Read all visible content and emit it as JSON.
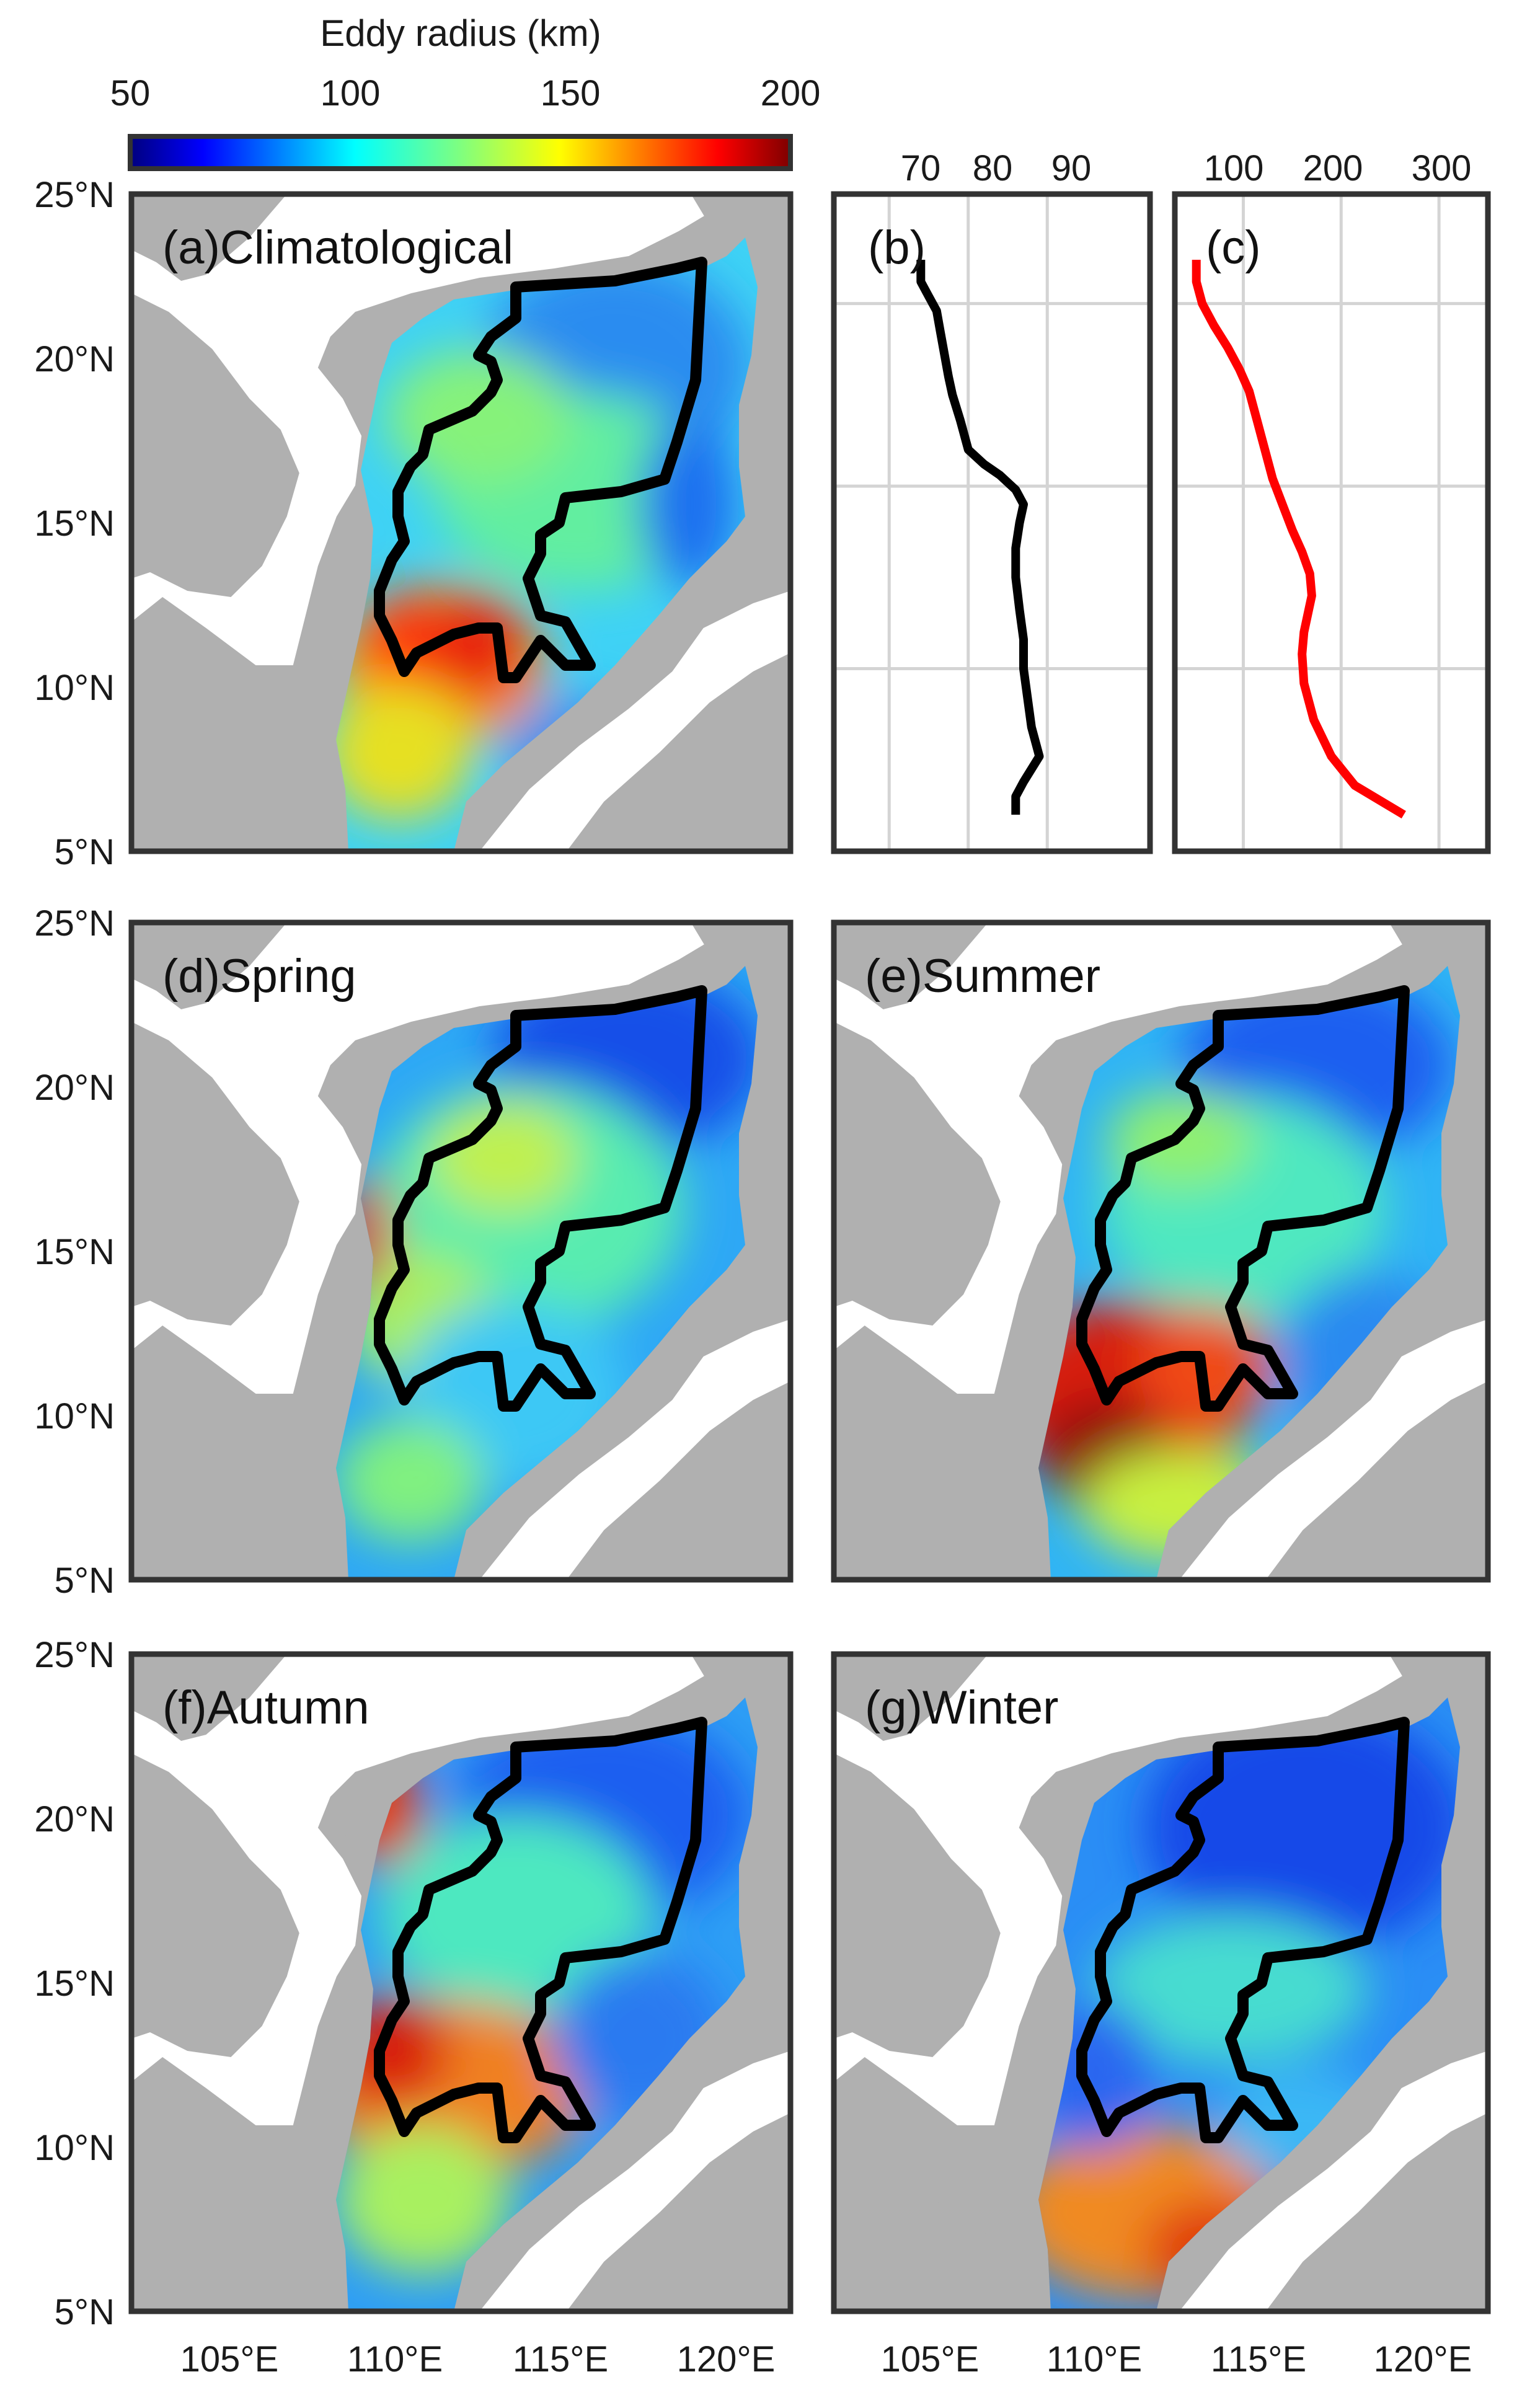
{
  "colorbar": {
    "title": "Eddy radius (km)",
    "ticks": [
      "50",
      "100",
      "150",
      "200"
    ],
    "range": [
      50,
      200
    ],
    "colormap": "jet"
  },
  "map_axes": {
    "lat_ticks": [
      "25°N",
      "20°N",
      "15°N",
      "10°N",
      "5°N"
    ],
    "lon_ticks": [
      "105°E",
      "110°E",
      "115°E",
      "120°E"
    ]
  },
  "panels": [
    {
      "id": "a",
      "title": "(a)Climatological"
    },
    {
      "id": "d",
      "title": "(d)Spring"
    },
    {
      "id": "e",
      "title": "(e)Summer"
    },
    {
      "id": "f",
      "title": "(f)Autumn"
    },
    {
      "id": "g",
      "title": "(g)Winter"
    }
  ],
  "profile_b": {
    "title": "(b)",
    "x_ticks": [
      "70",
      "80",
      "90"
    ]
  },
  "profile_c": {
    "title": "(c)",
    "x_ticks": [
      "100",
      "200",
      "300"
    ]
  },
  "colors": {
    "land": "#b0b0b0",
    "ocean_mask": "#ffffff",
    "contour": "#000000",
    "profile_b": "#000000",
    "profile_c": "#ff0000"
  },
  "chart_data": [
    {
      "type": "line",
      "panel": "b",
      "title": "(b)",
      "xlabel": "",
      "ylabel": "",
      "xlim": [
        63,
        103
      ],
      "ylim": [
        5,
        23
      ],
      "grid": true,
      "x": [
        74,
        74,
        75,
        76,
        76.5,
        77,
        77.5,
        78,
        79,
        80,
        82,
        84,
        86,
        87,
        86.5,
        86,
        86,
        86.5,
        87,
        87,
        87.5,
        88,
        89,
        87,
        86,
        86
      ],
      "y": [
        21.2,
        20.6,
        20.2,
        19.8,
        19.2,
        18.6,
        18.0,
        17.5,
        16.8,
        16.0,
        15.6,
        15.3,
        14.9,
        14.5,
        14.0,
        13.3,
        12.5,
        11.6,
        10.8,
        10.0,
        9.2,
        8.4,
        7.6,
        6.9,
        6.5,
        6.0
      ],
      "series": [
        {
          "values": [
            74,
            74,
            75,
            76,
            76.5,
            77,
            77.5,
            78,
            79,
            80,
            82,
            84,
            86,
            87,
            86.5,
            86,
            86,
            86.5,
            87,
            87,
            87.5,
            88,
            89,
            87,
            86,
            86
          ]
        }
      ]
    },
    {
      "type": "line",
      "panel": "c",
      "title": "(c)",
      "xlabel": "",
      "ylabel": "",
      "xlim": [
        30,
        350
      ],
      "ylim": [
        5,
        23
      ],
      "grid": true,
      "x": [
        52,
        52,
        58,
        70,
        84,
        96,
        106,
        114,
        122,
        130,
        140,
        150,
        160,
        168,
        170,
        166,
        162,
        160,
        162,
        172,
        190,
        214,
        264
      ],
      "y": [
        21.2,
        20.6,
        20.0,
        19.4,
        18.8,
        18.2,
        17.6,
        16.8,
        16.0,
        15.2,
        14.5,
        13.8,
        13.2,
        12.6,
        12.0,
        11.5,
        11.0,
        10.4,
        9.6,
        8.6,
        7.6,
        6.8,
        6.0
      ],
      "series": [
        {
          "values": [
            52,
            52,
            58,
            70,
            84,
            96,
            106,
            114,
            122,
            130,
            140,
            150,
            160,
            168,
            170,
            166,
            162,
            160,
            162,
            172,
            190,
            214,
            264
          ]
        }
      ]
    }
  ]
}
